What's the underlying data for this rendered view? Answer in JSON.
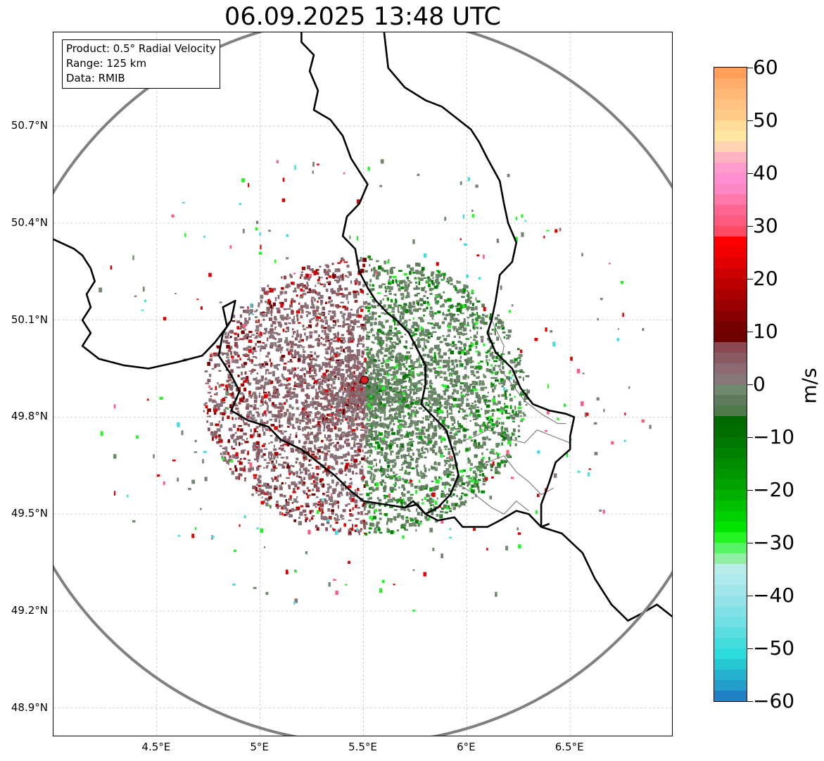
{
  "title": "06.09.2025 13:48 UTC",
  "info_box": {
    "product": "Product: 0.5° Radial Velocity",
    "range": "Range: 125 km",
    "data": "Data: RMIB"
  },
  "axes": {
    "lat_labels": [
      "50.7°N",
      "50.4°N",
      "50.1°N",
      "49.8°N",
      "49.5°N",
      "49.2°N",
      "48.9°N"
    ],
    "lon_labels": [
      "4.5°E",
      "5°E",
      "5.5°E",
      "6°E",
      "6.5°E"
    ],
    "lat_values": [
      50.7,
      50.4,
      50.1,
      49.8,
      49.5,
      49.2,
      48.9
    ],
    "lon_values": [
      4.5,
      5.0,
      5.5,
      6.0,
      6.5
    ],
    "lon_range": [
      4.0,
      7.0
    ],
    "lat_range": [
      48.81,
      50.99
    ]
  },
  "radar": {
    "name": "radar-site",
    "lon": 5.505,
    "lat": 49.915,
    "range_km": 125,
    "color": "#e31a1c"
  },
  "colorbar": {
    "unit": "m/s",
    "min": -60,
    "max": 60,
    "tick_values": [
      60,
      50,
      40,
      30,
      20,
      10,
      0,
      -10,
      -20,
      -30,
      -40,
      -50,
      -60
    ],
    "tick_labels": [
      "60",
      "50",
      "40",
      "30",
      "20",
      "10",
      "0",
      "−10",
      "−20",
      "−30",
      "−40",
      "−50",
      "−60"
    ],
    "bands": [
      {
        "from": 58,
        "to": 60,
        "color": "#ff9f5a"
      },
      {
        "from": 56,
        "to": 58,
        "color": "#ffad6a"
      },
      {
        "from": 54,
        "to": 56,
        "color": "#ffb875"
      },
      {
        "from": 52,
        "to": 54,
        "color": "#ffc27f"
      },
      {
        "from": 50,
        "to": 52,
        "color": "#ffcc88"
      },
      {
        "from": 48,
        "to": 50,
        "color": "#ffdd99"
      },
      {
        "from": 46,
        "to": 48,
        "color": "#ffe6a0"
      },
      {
        "from": 44,
        "to": 46,
        "color": "#ffd4b0"
      },
      {
        "from": 42,
        "to": 44,
        "color": "#ffb2c0"
      },
      {
        "from": 40,
        "to": 42,
        "color": "#ff9ccc"
      },
      {
        "from": 38,
        "to": 40,
        "color": "#ff8fd0"
      },
      {
        "from": 36,
        "to": 38,
        "color": "#ff86c5"
      },
      {
        "from": 34,
        "to": 36,
        "color": "#ff78a8"
      },
      {
        "from": 32,
        "to": 34,
        "color": "#ff6691"
      },
      {
        "from": 30,
        "to": 32,
        "color": "#ff5b80"
      },
      {
        "from": 28,
        "to": 30,
        "color": "#ff4a66"
      },
      {
        "from": 26,
        "to": 28,
        "color": "#ff0000"
      },
      {
        "from": 24,
        "to": 26,
        "color": "#f20000"
      },
      {
        "from": 22,
        "to": 24,
        "color": "#e00000"
      },
      {
        "from": 20,
        "to": 22,
        "color": "#cc0000"
      },
      {
        "from": 18,
        "to": 20,
        "color": "#bb0000"
      },
      {
        "from": 16,
        "to": 18,
        "color": "#aa0000"
      },
      {
        "from": 14,
        "to": 16,
        "color": "#990000"
      },
      {
        "from": 12,
        "to": 14,
        "color": "#880000"
      },
      {
        "from": 10,
        "to": 12,
        "color": "#770000"
      },
      {
        "from": 8,
        "to": 10,
        "color": "#6e0000"
      },
      {
        "from": 6,
        "to": 8,
        "color": "#884a50"
      },
      {
        "from": 4,
        "to": 6,
        "color": "#8a5a62"
      },
      {
        "from": 2,
        "to": 4,
        "color": "#8b6a74"
      },
      {
        "from": 0,
        "to": 2,
        "color": "#86787a"
      },
      {
        "from": -2,
        "to": 0,
        "color": "#6f8a6c"
      },
      {
        "from": -4,
        "to": -2,
        "color": "#5e7c5c"
      },
      {
        "from": -6,
        "to": -4,
        "color": "#4f7a4c"
      },
      {
        "from": -8,
        "to": -6,
        "color": "#006a00"
      },
      {
        "from": -10,
        "to": -8,
        "color": "#006f00"
      },
      {
        "from": -12,
        "to": -10,
        "color": "#007700"
      },
      {
        "from": -14,
        "to": -12,
        "color": "#008100"
      },
      {
        "from": -16,
        "to": -14,
        "color": "#008c00"
      },
      {
        "from": -18,
        "to": -16,
        "color": "#009600"
      },
      {
        "from": -20,
        "to": -18,
        "color": "#00a200"
      },
      {
        "from": -22,
        "to": -20,
        "color": "#00b000"
      },
      {
        "from": -24,
        "to": -22,
        "color": "#00c000"
      },
      {
        "from": -26,
        "to": -24,
        "color": "#00d200"
      },
      {
        "from": -28,
        "to": -26,
        "color": "#00e500"
      },
      {
        "from": -30,
        "to": -28,
        "color": "#22f522"
      },
      {
        "from": -32,
        "to": -30,
        "color": "#55f566"
      },
      {
        "from": -34,
        "to": -32,
        "color": "#8ef0a0"
      },
      {
        "from": -36,
        "to": -34,
        "color": "#b8eeea"
      },
      {
        "from": -38,
        "to": -36,
        "color": "#aeeaee"
      },
      {
        "from": -40,
        "to": -38,
        "color": "#a0e6ea"
      },
      {
        "from": -42,
        "to": -40,
        "color": "#92e4e8"
      },
      {
        "from": -44,
        "to": -42,
        "color": "#80e2e6"
      },
      {
        "from": -46,
        "to": -44,
        "color": "#6fe0e4"
      },
      {
        "from": -48,
        "to": -46,
        "color": "#5cdde0"
      },
      {
        "from": -50,
        "to": -48,
        "color": "#44dddd"
      },
      {
        "from": -52,
        "to": -50,
        "color": "#2ddcdc"
      },
      {
        "from": -54,
        "to": -52,
        "color": "#26c8d2"
      },
      {
        "from": -56,
        "to": -54,
        "color": "#24b2d0"
      },
      {
        "from": -58,
        "to": -56,
        "color": "#229dcc"
      },
      {
        "from": -60,
        "to": -58,
        "color": "#1f80c4"
      }
    ]
  },
  "borders": [
    {
      "name": "belgium-luxembourg-border",
      "points": [
        [
          5.2,
          50.99
        ],
        [
          5.2,
          50.96
        ],
        [
          5.26,
          50.92
        ],
        [
          5.24,
          50.87
        ],
        [
          5.28,
          50.81
        ],
        [
          5.26,
          50.75
        ],
        [
          5.34,
          50.72
        ],
        [
          5.4,
          50.67
        ],
        [
          5.44,
          50.6
        ],
        [
          5.48,
          50.56
        ],
        [
          5.52,
          50.52
        ],
        [
          5.48,
          50.46
        ],
        [
          5.42,
          50.42
        ],
        [
          5.4,
          50.36
        ],
        [
          5.46,
          50.32
        ],
        [
          5.48,
          50.25
        ],
        [
          5.52,
          50.2
        ],
        [
          5.56,
          50.16
        ],
        [
          5.62,
          50.12
        ],
        [
          5.66,
          50.1
        ],
        [
          5.72,
          50.06
        ],
        [
          5.76,
          50.01
        ],
        [
          5.8,
          49.96
        ],
        [
          5.8,
          49.9
        ],
        [
          5.78,
          49.84
        ],
        [
          5.84,
          49.8
        ],
        [
          5.9,
          49.76
        ],
        [
          5.92,
          49.72
        ],
        [
          5.94,
          49.68
        ],
        [
          5.96,
          49.62
        ],
        [
          5.92,
          49.56
        ],
        [
          5.86,
          49.52
        ],
        [
          5.8,
          49.5
        ],
        [
          5.74,
          49.54
        ],
        [
          5.7,
          49.52
        ]
      ]
    },
    {
      "name": "belgium-france-border",
      "points": [
        [
          4.0,
          50.35
        ],
        [
          4.1,
          50.32
        ],
        [
          4.14,
          50.3
        ],
        [
          4.18,
          50.26
        ],
        [
          4.2,
          50.22
        ],
        [
          4.16,
          50.18
        ],
        [
          4.18,
          50.14
        ],
        [
          4.14,
          50.1
        ],
        [
          4.18,
          50.06
        ],
        [
          4.14,
          50.02
        ],
        [
          4.22,
          49.98
        ],
        [
          4.34,
          49.96
        ],
        [
          4.46,
          49.95
        ],
        [
          4.6,
          49.97
        ],
        [
          4.72,
          49.99
        ],
        [
          4.78,
          50.03
        ],
        [
          4.84,
          50.08
        ],
        [
          4.82,
          50.14
        ],
        [
          4.88,
          50.16
        ],
        [
          4.86,
          50.1
        ],
        [
          4.82,
          50.06
        ],
        [
          4.8,
          49.99
        ],
        [
          4.86,
          49.93
        ],
        [
          4.9,
          49.88
        ],
        [
          4.86,
          49.82
        ],
        [
          4.94,
          49.79
        ],
        [
          5.04,
          49.77
        ],
        [
          5.1,
          49.73
        ],
        [
          5.2,
          49.7
        ],
        [
          5.28,
          49.66
        ],
        [
          5.36,
          49.62
        ],
        [
          5.44,
          49.57
        ],
        [
          5.5,
          49.54
        ],
        [
          5.6,
          49.53
        ],
        [
          5.7,
          49.52
        ],
        [
          5.76,
          49.53
        ],
        [
          5.8,
          49.5
        ],
        [
          5.86,
          49.52
        ]
      ]
    },
    {
      "name": "luxembourg-france-border",
      "points": [
        [
          5.8,
          49.5
        ],
        [
          5.86,
          49.48
        ],
        [
          5.94,
          49.49
        ],
        [
          5.98,
          49.46
        ],
        [
          6.06,
          49.46
        ],
        [
          6.1,
          49.46
        ],
        [
          6.16,
          49.48
        ],
        [
          6.24,
          49.51
        ],
        [
          6.3,
          49.5
        ],
        [
          6.36,
          49.46
        ],
        [
          6.4,
          49.47
        ]
      ]
    },
    {
      "name": "luxembourg-germany-border",
      "points": [
        [
          6.14,
          50.16
        ],
        [
          6.12,
          50.1
        ],
        [
          6.1,
          50.06
        ],
        [
          6.14,
          50.0
        ],
        [
          6.22,
          49.95
        ],
        [
          6.26,
          49.89
        ],
        [
          6.32,
          49.84
        ],
        [
          6.4,
          49.82
        ],
        [
          6.48,
          49.81
        ],
        [
          6.52,
          49.8
        ],
        [
          6.5,
          49.74
        ],
        [
          6.5,
          49.7
        ],
        [
          6.43,
          49.66
        ],
        [
          6.4,
          49.6
        ],
        [
          6.36,
          49.53
        ],
        [
          6.36,
          49.46
        ]
      ]
    },
    {
      "name": "belgium-germany-border",
      "points": [
        [
          5.6,
          50.99
        ],
        [
          5.62,
          50.88
        ],
        [
          5.7,
          50.82
        ],
        [
          5.8,
          50.78
        ],
        [
          5.88,
          50.76
        ],
        [
          5.96,
          50.72
        ],
        [
          6.02,
          50.69
        ],
        [
          6.06,
          50.65
        ],
        [
          6.1,
          50.6
        ],
        [
          6.16,
          50.53
        ],
        [
          6.18,
          50.46
        ],
        [
          6.2,
          50.4
        ],
        [
          6.24,
          50.34
        ],
        [
          6.22,
          50.28
        ],
        [
          6.16,
          50.24
        ],
        [
          6.14,
          50.16
        ]
      ]
    },
    {
      "name": "france-germany-border",
      "points": [
        [
          6.36,
          49.46
        ],
        [
          6.46,
          49.44
        ],
        [
          6.56,
          49.38
        ],
        [
          6.62,
          49.3
        ],
        [
          6.7,
          49.22
        ],
        [
          6.78,
          49.17
        ],
        [
          6.84,
          49.19
        ],
        [
          6.92,
          49.22
        ],
        [
          7.0,
          49.18
        ]
      ]
    }
  ],
  "districts": [
    {
      "name": "luxembourg-canton-lines",
      "points": [
        [
          6.12,
          50.1
        ],
        [
          6.18,
          50.02
        ],
        [
          6.16,
          49.95
        ],
        [
          6.22,
          49.9
        ],
        [
          6.28,
          49.85
        ],
        [
          6.36,
          49.81
        ],
        [
          6.44,
          49.78
        ],
        [
          6.48,
          49.78
        ]
      ]
    },
    {
      "name": "luxembourg-canton-lines-2",
      "points": [
        [
          5.96,
          49.72
        ],
        [
          6.04,
          49.74
        ],
        [
          6.1,
          49.76
        ],
        [
          6.16,
          49.75
        ],
        [
          6.22,
          49.73
        ],
        [
          6.28,
          49.72
        ],
        [
          6.34,
          49.76
        ],
        [
          6.42,
          49.74
        ],
        [
          6.5,
          49.72
        ]
      ]
    },
    {
      "name": "luxembourg-canton-lines-3",
      "points": [
        [
          6.02,
          49.64
        ],
        [
          6.1,
          49.66
        ],
        [
          6.18,
          49.68
        ],
        [
          6.24,
          49.63
        ],
        [
          6.3,
          49.6
        ],
        [
          6.36,
          49.56
        ],
        [
          6.42,
          49.58
        ]
      ]
    },
    {
      "name": "luxembourg-canton-lines-4",
      "points": [
        [
          5.94,
          49.6
        ],
        [
          6.04,
          49.56
        ],
        [
          6.12,
          49.52
        ],
        [
          6.18,
          49.5
        ],
        [
          6.24,
          49.54
        ],
        [
          6.3,
          49.51
        ]
      ]
    }
  ]
}
